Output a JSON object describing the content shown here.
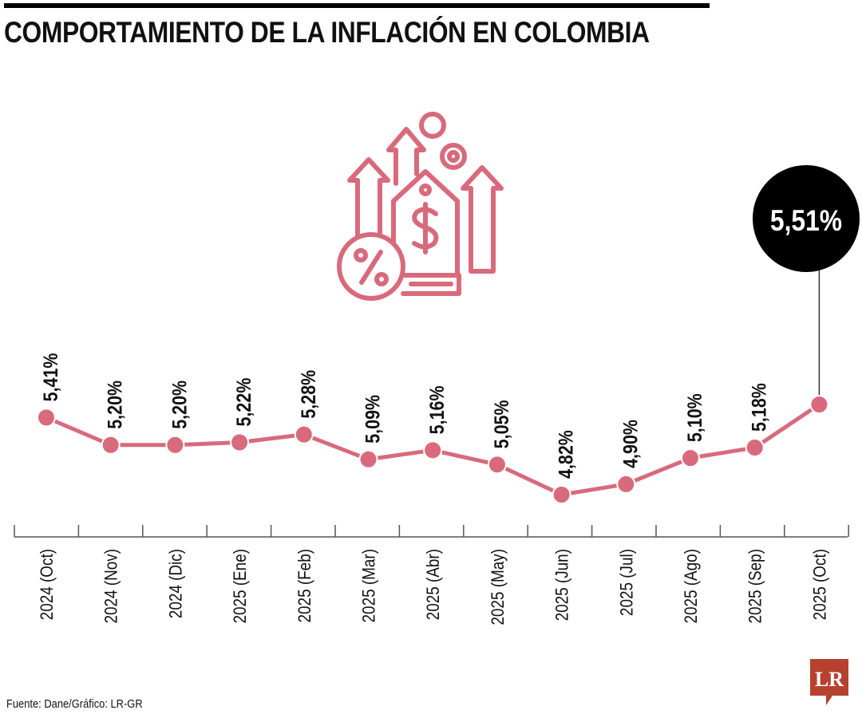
{
  "header": {
    "title": "COMPORTAMIENTO DE LA INFLACIÓN EN COLOMBIA"
  },
  "footer": {
    "source": "Fuente: Dane/Gráfico: LR-GR",
    "logo_text": "LR"
  },
  "illustration": {
    "icon": "inflation-price-tag-icon",
    "color": "#d86a7c"
  },
  "highlight": {
    "label": "5,51%",
    "color": "#000000"
  },
  "chart_data": {
    "type": "line",
    "title": "COMPORTAMIENTO DE LA INFLACIÓN EN COLOMBIA",
    "xlabel": "",
    "ylabel": "",
    "categories": [
      "2024 (Oct)",
      "2024 (Nov)",
      "2024 (Dic)",
      "2025 (Ene)",
      "2025 (Feb)",
      "2025 (Mar)",
      "2025 (Abr)",
      "2025 (May)",
      "2025 (Jun)",
      "2025 (Jul)",
      "2025 (Ago)",
      "2025 (Sep)",
      "2025 (Oct)"
    ],
    "values": [
      5.41,
      5.2,
      5.2,
      5.22,
      5.28,
      5.09,
      5.16,
      5.05,
      4.82,
      4.9,
      5.1,
      5.18,
      5.51
    ],
    "labels": [
      "5,41%",
      "5,20%",
      "5,20%",
      "5,22%",
      "5,28%",
      "5,09%",
      "5,16%",
      "5,05%",
      "4,82%",
      "4,90%",
      "5,10%",
      "5,18%",
      "5,51%"
    ],
    "grid": false,
    "legend": "none",
    "line_color": "#d86a7c",
    "axis_color": "#555555"
  }
}
